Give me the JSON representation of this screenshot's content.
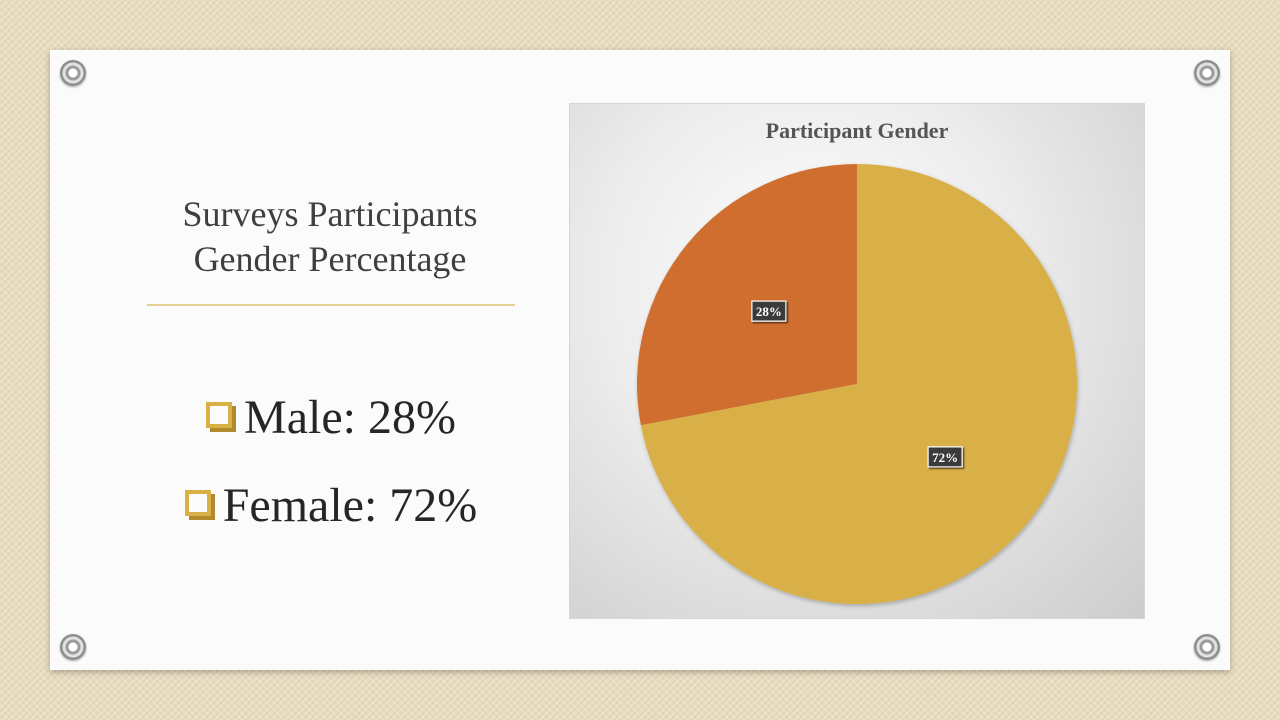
{
  "slide": {
    "title_line1": "Surveys Participants",
    "title_line2": "Gender Percentage",
    "bullets": [
      {
        "label": "Male: 28%",
        "icon": "checkbox-bullet-icon"
      },
      {
        "label": "Female: 72%",
        "icon": "checkbox-bullet-icon"
      }
    ]
  },
  "chart_data": {
    "type": "pie",
    "title": "Participant Gender",
    "categories": [
      "Male",
      "Female"
    ],
    "values": [
      28,
      72
    ],
    "data_labels": [
      "28%",
      "72%"
    ],
    "colors": [
      "#cf6e2e",
      "#d9b046"
    ],
    "start_angle_deg": 0,
    "direction": "counterclockwise-for-first-slice",
    "legend": "none"
  }
}
